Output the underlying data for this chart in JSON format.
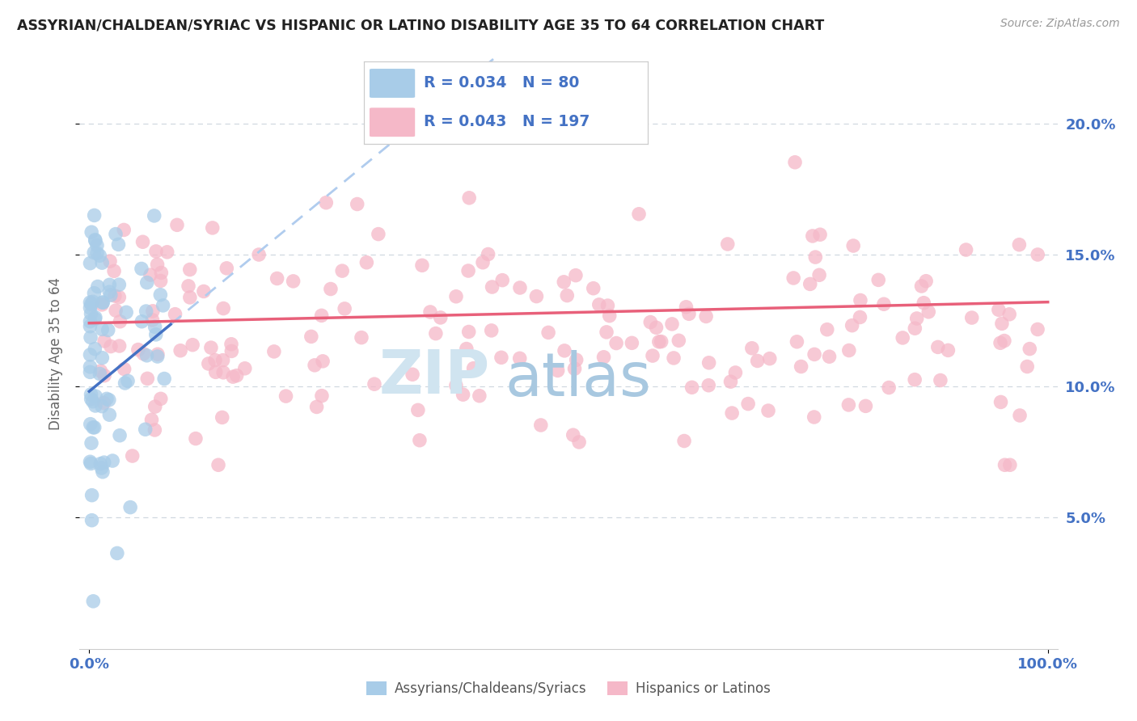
{
  "title": "ASSYRIAN/CHALDEAN/SYRIAC VS HISPANIC OR LATINO DISABILITY AGE 35 TO 64 CORRELATION CHART",
  "source": "Source: ZipAtlas.com",
  "ylabel": "Disability Age 35 to 64",
  "ytick_vals": [
    0.05,
    0.1,
    0.15,
    0.2
  ],
  "legend_blue_label": "Assyrians/Chaldeans/Syriacs",
  "legend_pink_label": "Hispanics or Latinos",
  "R_blue": 0.034,
  "N_blue": 80,
  "R_pink": 0.043,
  "N_pink": 197,
  "blue_color": "#a8cce8",
  "pink_color": "#f5b8c8",
  "trendline_blue_color": "#4472c4",
  "trendline_pink_color": "#e8607a",
  "trendline_dashed_color": "#b0ccee",
  "watermark_main_color": "#d0e4f0",
  "watermark_accent_color": "#a8c8e0",
  "background_color": "#ffffff",
  "grid_color": "#d0d8e0",
  "spine_color": "#cccccc",
  "tick_label_color": "#4472c4",
  "ylabel_color": "#666666",
  "title_color": "#222222",
  "source_color": "#999999",
  "legend_label_color": "#555555"
}
